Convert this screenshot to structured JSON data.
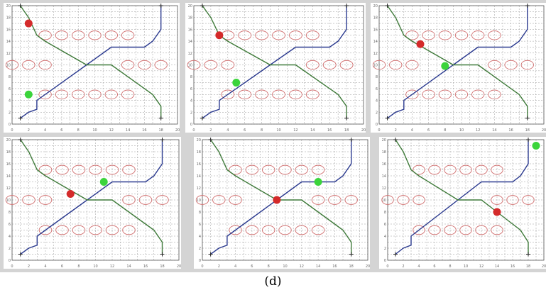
{
  "caption": "(d)",
  "colors": {
    "grid": "#9a9a9a",
    "obstacle": "#d07070",
    "path_blue": "#2b3a8f",
    "path_green": "#3f7a3a",
    "agent_red": "#d42a2a",
    "agent_green": "#3bd43b",
    "axis_text": "#666666",
    "frame": "#d4d4d4"
  },
  "axes": {
    "x_ticks": [
      "0",
      "2",
      "4",
      "6",
      "8",
      "10",
      "12",
      "14",
      "16",
      "18",
      "20"
    ],
    "y_ticks": [
      "0",
      "2",
      "4",
      "6",
      "8",
      "10",
      "12",
      "14",
      "16",
      "18",
      "20"
    ],
    "xlim": [
      0,
      20
    ],
    "ylim": [
      0,
      20
    ]
  },
  "obstacles": {
    "upper_row": [
      [
        4,
        15
      ],
      [
        6,
        15
      ],
      [
        8,
        15
      ],
      [
        10,
        15
      ],
      [
        12,
        15
      ],
      [
        14,
        15
      ]
    ],
    "middle_left": [
      [
        0,
        10
      ],
      [
        2,
        10
      ],
      [
        4,
        10
      ]
    ],
    "middle_right": [
      [
        14,
        10
      ],
      [
        16,
        10
      ],
      [
        18,
        10
      ]
    ],
    "lower_row": [
      [
        4,
        5
      ],
      [
        6,
        5
      ],
      [
        8,
        5
      ],
      [
        10,
        5
      ],
      [
        12,
        5
      ],
      [
        14,
        5
      ]
    ]
  },
  "paths": {
    "blue": [
      [
        1,
        1
      ],
      [
        2,
        2
      ],
      [
        3,
        2.5
      ],
      [
        3,
        4
      ],
      [
        5,
        6
      ],
      [
        9,
        10
      ],
      [
        12,
        13
      ],
      [
        16,
        13
      ],
      [
        17,
        14
      ],
      [
        18,
        16
      ],
      [
        18,
        18
      ],
      [
        18,
        20
      ]
    ],
    "green": [
      [
        1,
        20
      ],
      [
        2,
        18
      ],
      [
        3,
        15
      ],
      [
        4,
        14
      ],
      [
        9,
        10
      ],
      [
        12,
        10
      ],
      [
        14,
        8
      ],
      [
        16,
        6
      ],
      [
        17,
        5
      ],
      [
        18,
        3
      ],
      [
        18,
        1
      ]
    ]
  },
  "panels": [
    {
      "id": "1",
      "agent_red": [
        2,
        17
      ],
      "agent_green": [
        2,
        5
      ]
    },
    {
      "id": "2",
      "agent_red": [
        3,
        15
      ],
      "agent_green": [
        5,
        7
      ]
    },
    {
      "id": "3",
      "agent_red": [
        5,
        13.5
      ],
      "agent_green": [
        8,
        9.8
      ]
    },
    {
      "id": "4",
      "agent_red": [
        7,
        11
      ],
      "agent_green": [
        11,
        13
      ]
    },
    {
      "id": "5",
      "agent_red": [
        9,
        10
      ],
      "agent_green": [
        14,
        13
      ]
    },
    {
      "id": "6",
      "agent_red": [
        14,
        8
      ],
      "agent_green": [
        19,
        19
      ]
    }
  ]
}
